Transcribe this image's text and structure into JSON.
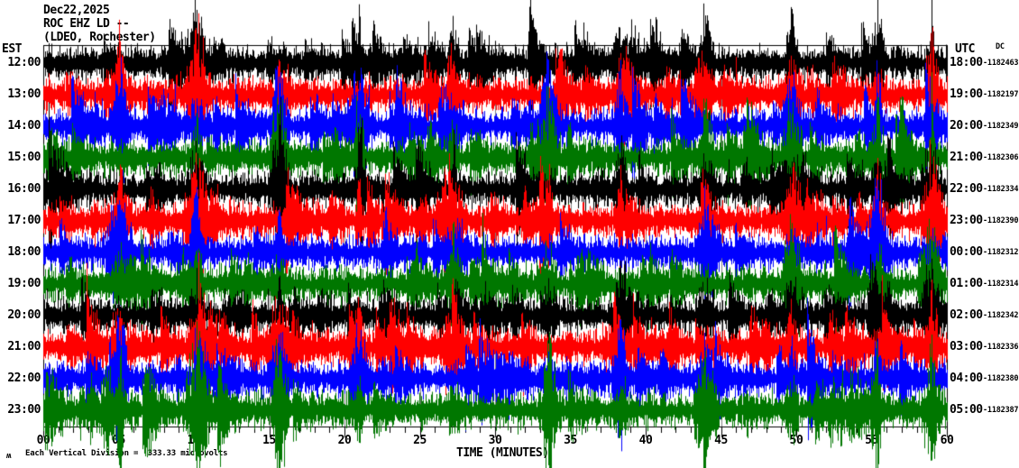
{
  "header": {
    "date": "Dec22,2025",
    "station": "ROC EHZ LD --",
    "location": "(LDEO, Rochester)"
  },
  "left_axis": {
    "label": "EST"
  },
  "right_axis": {
    "label": "UTC",
    "dc_label": "DC"
  },
  "rows": [
    {
      "est": "12:00",
      "utc": "18:00",
      "dc": "-1182463",
      "color": "#000000"
    },
    {
      "est": "13:00",
      "utc": "19:00",
      "dc": "-1182197",
      "color": "#ff0000"
    },
    {
      "est": "14:00",
      "utc": "20:00",
      "dc": "-1182349",
      "color": "#0000ff"
    },
    {
      "est": "15:00",
      "utc": "21:00",
      "dc": "-1182306",
      "color": "#007700"
    },
    {
      "est": "16:00",
      "utc": "22:00",
      "dc": "-1182334",
      "color": "#000000"
    },
    {
      "est": "17:00",
      "utc": "23:00",
      "dc": "-1182390",
      "color": "#ff0000"
    },
    {
      "est": "18:00",
      "utc": "00:00",
      "dc": "-1182312",
      "color": "#0000ff"
    },
    {
      "est": "19:00",
      "utc": "01:00",
      "dc": "-1182314",
      "color": "#007700"
    },
    {
      "est": "20:00",
      "utc": "02:00",
      "dc": "-1182342",
      "color": "#000000"
    },
    {
      "est": "21:00",
      "utc": "03:00",
      "dc": "-1182336",
      "color": "#ff0000"
    },
    {
      "est": "22:00",
      "utc": "04:00",
      "dc": "-1182380",
      "color": "#0000ff"
    },
    {
      "est": "23:00",
      "utc": "05:00",
      "dc": "-1182387",
      "color": "#007700"
    }
  ],
  "x_axis": {
    "label": "TIME (MINUTES)",
    "ticks": [
      "00",
      "05",
      "10",
      "15",
      "20",
      "25",
      "30",
      "35",
      "40",
      "45",
      "50",
      "55",
      "60"
    ]
  },
  "footer": {
    "watermark": "ʍ",
    "scale_note": "Each Vertical Division =  333.33 microvolts"
  },
  "colors": {
    "background": "#ffffff",
    "frame": "#000000",
    "grid": "#808080"
  },
  "chart_data": {
    "type": "line",
    "subtype": "helicorder-seismogram",
    "title": "ROC EHZ LD -- (LDEO, Rochester) Dec22,2025",
    "xlabel": "TIME (MINUTES)",
    "x_range_minutes": [
      0,
      60
    ],
    "x_ticks_minutes": [
      0,
      5,
      10,
      15,
      20,
      25,
      30,
      35,
      40,
      45,
      50,
      55,
      60
    ],
    "minutes_per_row": 60,
    "rows_are_consecutive_hours": true,
    "vertical_division_microvolts": 333.33,
    "row_color_cycle": [
      "#000000",
      "#ff0000",
      "#0000ff",
      "#007700"
    ],
    "grid": "vertical gray lines every 5 minutes",
    "legend_position": "none",
    "series": [
      {
        "est": "12:00",
        "utc": "18:00",
        "dc_counts": -1182463,
        "color": "#000000"
      },
      {
        "est": "13:00",
        "utc": "19:00",
        "dc_counts": -1182197,
        "color": "#ff0000"
      },
      {
        "est": "14:00",
        "utc": "20:00",
        "dc_counts": -1182349,
        "color": "#0000ff"
      },
      {
        "est": "15:00",
        "utc": "21:00",
        "dc_counts": -1182306,
        "color": "#007700"
      },
      {
        "est": "16:00",
        "utc": "22:00",
        "dc_counts": -1182334,
        "color": "#000000"
      },
      {
        "est": "17:00",
        "utc": "23:00",
        "dc_counts": -1182390,
        "color": "#ff0000"
      },
      {
        "est": "18:00",
        "utc": "00:00",
        "dc_counts": -1182312,
        "color": "#0000ff"
      },
      {
        "est": "19:00",
        "utc": "01:00",
        "dc_counts": -1182314,
        "color": "#007700"
      },
      {
        "est": "20:00",
        "utc": "02:00",
        "dc_counts": -1182342,
        "color": "#000000"
      },
      {
        "est": "21:00",
        "utc": "03:00",
        "dc_counts": -1182336,
        "color": "#ff0000"
      },
      {
        "est": "22:00",
        "utc": "04:00",
        "dc_counts": -1182380,
        "color": "#0000ff"
      },
      {
        "est": "23:00",
        "utc": "05:00",
        "dc_counts": -1182387,
        "color": "#007700"
      }
    ]
  }
}
